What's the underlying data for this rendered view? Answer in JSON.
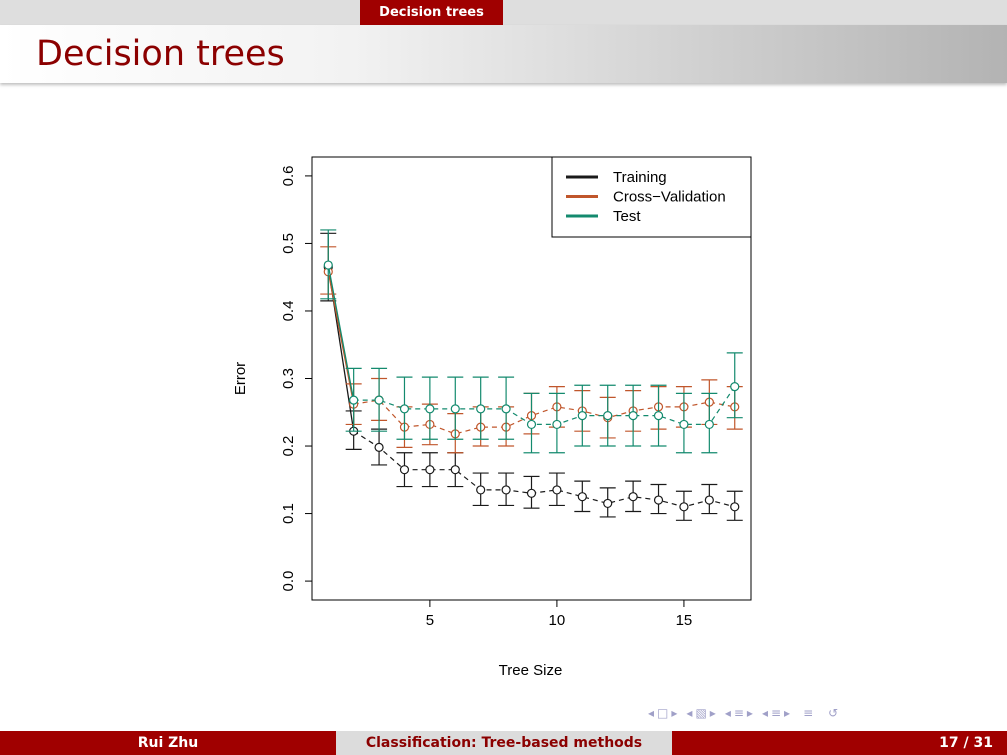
{
  "header": {
    "section": "Decision trees",
    "title": "Decision trees"
  },
  "footer": {
    "author": "Rui Zhu",
    "talk": "Classification: Tree-based methods",
    "page": "17 / 31"
  },
  "nav_icons": [
    "nav-prev-frame-icon",
    "nav-next-frame-icon",
    "nav-prev-slide-icon",
    "nav-next-slide-icon",
    "nav-prev-section-icon",
    "nav-next-section-icon",
    "nav-prev-subsection-icon",
    "nav-next-subsection-icon",
    "nav-align-icon",
    "nav-search-icon"
  ],
  "chart_data": {
    "type": "line",
    "title": "",
    "xlabel": "Tree Size",
    "ylabel": "Error",
    "xlim": [
      0.36,
      17.64
    ],
    "ylim": [
      -0.028,
      0.628
    ],
    "xticks": [
      5,
      10,
      15
    ],
    "yticks": [
      0.0,
      0.1,
      0.2,
      0.3,
      0.4,
      0.5,
      0.6
    ],
    "ytick_labels": [
      "0.0",
      "0.1",
      "0.2",
      "0.3",
      "0.4",
      "0.5",
      "0.6"
    ],
    "x": [
      1,
      2,
      3,
      4,
      5,
      6,
      7,
      8,
      9,
      10,
      11,
      12,
      13,
      14,
      15,
      16,
      17
    ],
    "legend": {
      "position": "top-right",
      "entries": [
        "Training",
        "Cross−Validation",
        "Test"
      ]
    },
    "series": [
      {
        "name": "Training",
        "color": "#1a1a1a",
        "values": [
          0.465,
          0.222,
          0.198,
          0.165,
          0.165,
          0.165,
          0.135,
          0.135,
          0.13,
          0.135,
          0.125,
          0.115,
          0.125,
          0.12,
          0.11,
          0.12,
          0.11
        ],
        "lower": [
          0.415,
          0.195,
          0.172,
          0.14,
          0.14,
          0.14,
          0.112,
          0.112,
          0.108,
          0.112,
          0.103,
          0.095,
          0.103,
          0.1,
          0.09,
          0.1,
          0.09
        ],
        "upper": [
          0.515,
          0.252,
          0.225,
          0.19,
          0.19,
          0.19,
          0.16,
          0.16,
          0.155,
          0.16,
          0.148,
          0.138,
          0.148,
          0.143,
          0.133,
          0.143,
          0.133
        ]
      },
      {
        "name": "Cross−Validation",
        "color": "#c0562b",
        "values": [
          0.458,
          0.262,
          0.268,
          0.228,
          0.232,
          0.218,
          0.228,
          0.228,
          0.245,
          0.258,
          0.252,
          0.242,
          0.252,
          0.258,
          0.258,
          0.265,
          0.258
        ],
        "lower": [
          0.425,
          0.232,
          0.238,
          0.198,
          0.202,
          0.19,
          0.2,
          0.2,
          0.218,
          0.228,
          0.222,
          0.212,
          0.222,
          0.225,
          0.228,
          0.232,
          0.225
        ],
        "upper": [
          0.495,
          0.292,
          0.3,
          0.258,
          0.262,
          0.248,
          0.258,
          0.258,
          0.278,
          0.288,
          0.282,
          0.272,
          0.282,
          0.288,
          0.288,
          0.298,
          0.288
        ]
      },
      {
        "name": "Test",
        "color": "#138a6e",
        "values": [
          0.468,
          0.268,
          0.268,
          0.255,
          0.255,
          0.255,
          0.255,
          0.255,
          0.232,
          0.232,
          0.245,
          0.245,
          0.245,
          0.245,
          0.232,
          0.232,
          0.288
        ],
        "lower": [
          0.418,
          0.222,
          0.222,
          0.21,
          0.21,
          0.21,
          0.21,
          0.21,
          0.19,
          0.19,
          0.2,
          0.2,
          0.2,
          0.2,
          0.19,
          0.19,
          0.242
        ],
        "upper": [
          0.52,
          0.315,
          0.315,
          0.302,
          0.302,
          0.302,
          0.302,
          0.302,
          0.278,
          0.278,
          0.29,
          0.29,
          0.29,
          0.29,
          0.278,
          0.278,
          0.338
        ]
      }
    ]
  }
}
